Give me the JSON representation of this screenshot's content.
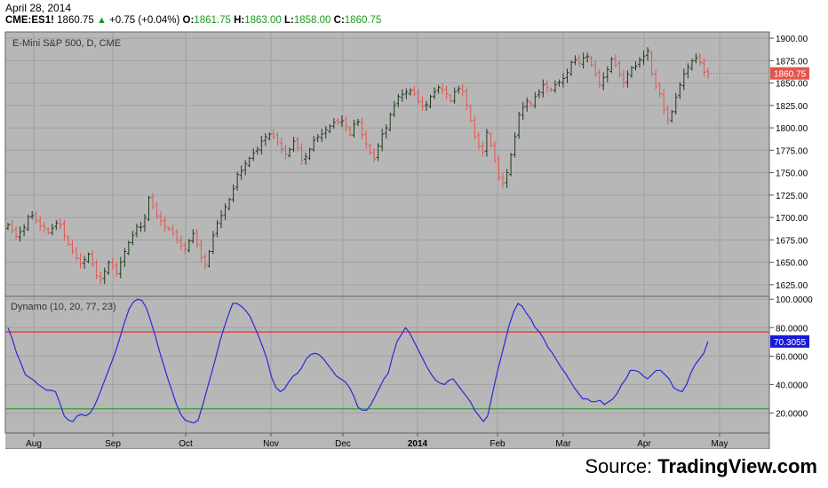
{
  "header": {
    "date": "April 28, 2014",
    "symbol": "CME:ES1!",
    "last": "1860.75",
    "change": "+0.75 (+0.04%)",
    "o_label": "O:",
    "o_value": "1861.75",
    "h_label": "H:",
    "h_value": "1863.00",
    "l_label": "L:",
    "l_value": "1858.00",
    "c_label": "C:",
    "c_value": "1860.75"
  },
  "source": {
    "prefix": "Source: ",
    "brand": "TradingView.com"
  },
  "colors": {
    "panel_bg": "#b7b7b7",
    "grid": "#a2a2a2",
    "up_bar": "#1e3a1e",
    "down_bar": "#e2574c",
    "dynamo_line": "#2a2ad8",
    "upper_line": "#e03030",
    "lower_line": "#3a9a3a",
    "price_label_bg": "#e2574c",
    "osc_label_bg": "#1a1ad8"
  },
  "chart_data": [
    {
      "type": "ohlc",
      "title": "E-Mini S&P 500, D, CME",
      "ylim": [
        1612,
        1907
      ],
      "y_ticks": [
        "1900.00",
        "1875.00",
        "1850.00",
        "1825.00",
        "1800.00",
        "1775.00",
        "1750.00",
        "1725.00",
        "1700.00",
        "1675.00",
        "1650.00",
        "1625.00"
      ],
      "last_price_label": "1860.75",
      "x_ticks": [
        "Aug",
        "Sep",
        "Oct",
        "Nov",
        "Dec",
        "2014",
        "Feb",
        "Mar",
        "Apr",
        "May"
      ],
      "closes": [
        1692,
        1685,
        1679,
        1684,
        1689,
        1701,
        1702,
        1697,
        1690,
        1689,
        1683,
        1688,
        1694,
        1692,
        1680,
        1670,
        1662,
        1655,
        1648,
        1653,
        1659,
        1648,
        1635,
        1631,
        1640,
        1650,
        1645,
        1638,
        1650,
        1662,
        1672,
        1680,
        1690,
        1689,
        1700,
        1722,
        1712,
        1702,
        1696,
        1690,
        1687,
        1682,
        1675,
        1668,
        1665,
        1674,
        1682,
        1670,
        1655,
        1648,
        1662,
        1680,
        1694,
        1702,
        1712,
        1720,
        1732,
        1748,
        1752,
        1760,
        1766,
        1772,
        1776,
        1785,
        1790,
        1793,
        1790,
        1784,
        1776,
        1771,
        1776,
        1785,
        1778,
        1764,
        1768,
        1776,
        1786,
        1790,
        1793,
        1798,
        1802,
        1806,
        1807,
        1808,
        1802,
        1792,
        1804,
        1807,
        1792,
        1782,
        1772,
        1765,
        1780,
        1793,
        1800,
        1815,
        1825,
        1835,
        1837,
        1840,
        1842,
        1838,
        1830,
        1824,
        1826,
        1835,
        1840,
        1845,
        1842,
        1838,
        1830,
        1840,
        1844,
        1840,
        1826,
        1808,
        1790,
        1780,
        1773,
        1795,
        1780,
        1764,
        1745,
        1738,
        1750,
        1770,
        1790,
        1815,
        1823,
        1830,
        1825,
        1835,
        1840,
        1848,
        1845,
        1842,
        1848,
        1851,
        1855,
        1862,
        1873,
        1876,
        1872,
        1878,
        1880,
        1870,
        1860,
        1848,
        1856,
        1865,
        1877,
        1870,
        1860,
        1850,
        1860,
        1867,
        1869,
        1876,
        1880,
        1886,
        1860,
        1846,
        1838,
        1820,
        1810,
        1818,
        1834,
        1848,
        1860,
        1868,
        1875,
        1878,
        1873,
        1862,
        1860.75
      ],
      "series": [
        {
          "name": "Dynamo (10, 20, 77, 23)",
          "kind": "oscillator"
        }
      ]
    },
    {
      "type": "line",
      "title": "Dynamo (10, 20, 77, 23)",
      "ylim": [
        6,
        102
      ],
      "y_ticks": [
        "100.0000",
        "80.0000",
        "60.0000",
        "40.0000",
        "20.0000"
      ],
      "last_value_label": "70.3055",
      "upper_level": 77,
      "lower_level": 23,
      "x_ticks": [
        "Aug",
        "Sep",
        "Oct",
        "Nov",
        "Dec",
        "2014",
        "Feb",
        "Mar",
        "Apr",
        "May"
      ],
      "values": [
        80,
        72,
        62,
        55,
        47,
        45,
        43,
        40,
        38,
        36,
        36,
        35,
        27,
        18,
        15,
        14,
        18,
        19,
        18,
        20,
        25,
        32,
        40,
        48,
        56,
        64,
        74,
        84,
        93,
        98,
        100,
        99,
        94,
        85,
        75,
        64,
        54,
        44,
        35,
        26,
        19,
        15,
        14,
        13,
        15,
        25,
        36,
        47,
        58,
        70,
        80,
        89,
        97,
        97,
        95,
        92,
        88,
        81,
        74,
        66,
        57,
        45,
        38,
        35,
        37,
        42,
        46,
        48,
        52,
        58,
        61,
        62,
        61,
        58,
        54,
        50,
        46,
        44,
        42,
        38,
        32,
        24,
        22,
        22,
        26,
        32,
        38,
        44,
        48,
        60,
        70,
        75,
        80,
        76,
        70,
        64,
        58,
        52,
        47,
        43,
        41,
        40,
        43,
        44,
        40,
        36,
        32,
        28,
        22,
        18,
        14,
        18,
        32,
        46,
        58,
        70,
        82,
        91,
        97,
        95,
        90,
        86,
        80,
        77,
        72,
        66,
        62,
        57,
        52,
        48,
        43,
        38,
        34,
        30,
        30,
        28,
        28,
        29,
        26,
        28,
        30,
        34,
        40,
        44,
        50,
        50,
        49,
        46,
        44,
        47,
        50,
        50,
        47,
        44,
        38,
        36,
        35,
        40,
        48,
        54,
        58,
        62,
        70.3
      ]
    }
  ]
}
